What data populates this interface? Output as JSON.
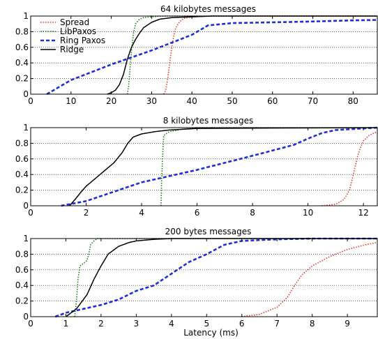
{
  "chart_data": [
    {
      "type": "line",
      "title": "64 kilobytes messages",
      "xlabel": "",
      "ylabel": "",
      "xlim": [
        0,
        86
      ],
      "ylim": [
        0,
        1
      ],
      "xticks": [
        0,
        10,
        20,
        30,
        40,
        50,
        60,
        70,
        80
      ],
      "yticks": [
        0,
        0.2,
        0.4,
        0.6,
        0.8,
        1
      ],
      "grid": "horizontal",
      "legend": "top-left",
      "series": [
        {
          "name": "Spread",
          "color": "#e8342a",
          "style": "dotted",
          "x": [
            33,
            33.5,
            34,
            34.5,
            35,
            35.5,
            36,
            37,
            38,
            40,
            45,
            86
          ],
          "y": [
            0,
            0.05,
            0.2,
            0.4,
            0.6,
            0.75,
            0.85,
            0.93,
            0.97,
            0.99,
            1,
            1
          ]
        },
        {
          "name": "LibPaxos",
          "color": "#1a7a1a",
          "style": "dotted",
          "x": [
            24,
            24.3,
            24.6,
            25,
            25.5,
            26,
            27,
            28,
            30,
            33,
            86
          ],
          "y": [
            0,
            0.1,
            0.3,
            0.55,
            0.78,
            0.9,
            0.96,
            0.98,
            0.99,
            1,
            1
          ]
        },
        {
          "name": "Ring Paxos",
          "color": "#1a2ee0",
          "style": "dashed",
          "x": [
            4,
            10,
            20,
            30,
            40,
            44,
            50,
            60,
            70,
            80,
            86
          ],
          "y": [
            0,
            0.18,
            0.38,
            0.56,
            0.76,
            0.88,
            0.91,
            0.92,
            0.93,
            0.945,
            0.95
          ]
        },
        {
          "name": "Ridge",
          "color": "#000000",
          "style": "solid",
          "x": [
            19,
            20,
            21,
            22,
            23,
            24,
            25,
            26,
            27,
            28,
            30,
            32,
            35,
            40,
            45,
            86
          ],
          "y": [
            0,
            0.02,
            0.05,
            0.12,
            0.25,
            0.45,
            0.6,
            0.7,
            0.78,
            0.85,
            0.92,
            0.96,
            0.98,
            0.99,
            1,
            1
          ]
        }
      ]
    },
    {
      "type": "line",
      "title": "8 kilobytes messages",
      "xlabel": "",
      "ylabel": "",
      "xlim": [
        0,
        12.5
      ],
      "ylim": [
        0,
        1
      ],
      "xticks": [
        0,
        2,
        4,
        6,
        8,
        10,
        12
      ],
      "yticks": [
        0,
        0.2,
        0.4,
        0.6,
        0.8,
        1
      ],
      "grid": "horizontal",
      "legend": "none",
      "series": [
        {
          "name": "Spread",
          "color": "#e8342a",
          "style": "dotted",
          "x": [
            10.5,
            11,
            11.3,
            11.5,
            11.6,
            11.7,
            11.8,
            11.9,
            12,
            12.2,
            12.5
          ],
          "y": [
            0,
            0.02,
            0.08,
            0.2,
            0.35,
            0.5,
            0.65,
            0.75,
            0.83,
            0.9,
            0.95
          ]
        },
        {
          "name": "LibPaxos",
          "color": "#1a7a1a",
          "style": "dotted",
          "x": [
            4.7,
            4.72,
            4.75,
            4.78,
            4.8,
            5,
            5.5,
            6,
            12.5
          ],
          "y": [
            0,
            0.3,
            0.6,
            0.8,
            0.9,
            0.95,
            0.98,
            1,
            1
          ]
        },
        {
          "name": "Ring Paxos",
          "color": "#1a2ee0",
          "style": "dashed",
          "x": [
            1.1,
            2,
            4,
            6,
            8,
            9.5,
            10,
            10.5,
            11,
            12,
            12.5
          ],
          "y": [
            0,
            0.06,
            0.3,
            0.46,
            0.64,
            0.78,
            0.86,
            0.93,
            0.97,
            0.99,
            1
          ]
        },
        {
          "name": "Ridge",
          "color": "#000000",
          "style": "solid",
          "x": [
            1.4,
            1.6,
            1.8,
            2,
            2.5,
            3,
            3.3,
            3.5,
            3.7,
            4,
            4.5,
            5,
            6,
            12.5
          ],
          "y": [
            0,
            0.08,
            0.17,
            0.25,
            0.4,
            0.55,
            0.68,
            0.8,
            0.88,
            0.92,
            0.95,
            0.97,
            0.99,
            1
          ]
        }
      ]
    },
    {
      "type": "line",
      "title": "200 bytes messages",
      "xlabel": "Latency (ms)",
      "ylabel": "",
      "xlim": [
        0,
        9.85
      ],
      "ylim": [
        0,
        1
      ],
      "xticks": [
        0,
        1,
        2,
        3,
        4,
        5,
        6,
        7,
        8,
        9
      ],
      "yticks": [
        0,
        0.2,
        0.4,
        0.6,
        0.8,
        1
      ],
      "grid": "horizontal",
      "legend": "none",
      "series": [
        {
          "name": "Spread",
          "color": "#e8342a",
          "style": "dotted",
          "x": [
            6,
            6.5,
            7,
            7.3,
            7.5,
            7.7,
            8,
            8.5,
            9,
            9.5,
            9.85
          ],
          "y": [
            0,
            0.03,
            0.12,
            0.25,
            0.4,
            0.53,
            0.65,
            0.77,
            0.86,
            0.92,
            0.95
          ]
        },
        {
          "name": "LibPaxos",
          "color": "#1a7a1a",
          "style": "dotted",
          "x": [
            1.25,
            1.3,
            1.35,
            1.4,
            1.5,
            1.6,
            1.65,
            1.7,
            1.8,
            1.9,
            9.85
          ],
          "y": [
            0,
            0.2,
            0.5,
            0.65,
            0.68,
            0.72,
            0.8,
            0.92,
            0.97,
            1,
            1
          ]
        },
        {
          "name": "Ring Paxos",
          "color": "#1a2ee0",
          "style": "dashed",
          "x": [
            0.7,
            1,
            1.5,
            2,
            2.5,
            3,
            3.5,
            4,
            4.5,
            5,
            5.5,
            6,
            7,
            8,
            9.85
          ],
          "y": [
            0,
            0.05,
            0.1,
            0.15,
            0.22,
            0.33,
            0.4,
            0.55,
            0.7,
            0.8,
            0.92,
            0.97,
            0.99,
            1,
            1
          ]
        },
        {
          "name": "Ridge",
          "color": "#000000",
          "style": "solid",
          "x": [
            1,
            1.3,
            1.6,
            1.8,
            2,
            2.2,
            2.5,
            2.8,
            3,
            3.5,
            4,
            9.85
          ],
          "y": [
            0,
            0.1,
            0.28,
            0.48,
            0.65,
            0.8,
            0.9,
            0.95,
            0.97,
            0.99,
            1,
            1
          ]
        }
      ]
    }
  ]
}
